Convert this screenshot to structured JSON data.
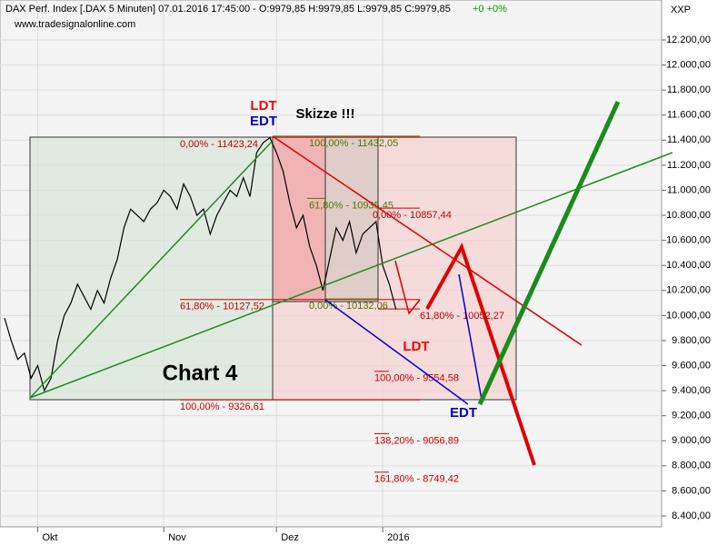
{
  "chart_data": {
    "type": "line",
    "header": "DAX Perf. Index [.DAX  5 Minuten] 07.01.2016 17:45:00 - O:9979,85 H:9979,85 L:9979,85 C:9979,85",
    "change": "+0 +0%",
    "source": "www.tradesignalonline.com",
    "axis_label": "XXP",
    "color": "#000000",
    "categories": [
      null,
      null,
      null,
      null,
      null,
      "Okt",
      null,
      null,
      null,
      null,
      null,
      null,
      null,
      null,
      null,
      null,
      null,
      null,
      null,
      null,
      null,
      null,
      null,
      null,
      "Nov",
      null,
      null,
      null,
      null,
      null,
      null,
      null,
      null,
      null,
      null,
      null,
      null,
      null,
      null,
      null,
      null,
      "Dez",
      null,
      null,
      null,
      null,
      null,
      null,
      null,
      null,
      null,
      null,
      null,
      null,
      null,
      null,
      null,
      "2016",
      null,
      null
    ],
    "values": [
      9980,
      9800,
      9650,
      9700,
      9500,
      9600,
      9400,
      9500,
      9800,
      10000,
      10100,
      10250,
      10150,
      10050,
      10200,
      10100,
      10300,
      10450,
      10700,
      10850,
      10800,
      10750,
      10850,
      10900,
      11000,
      10950,
      10850,
      11050,
      10950,
      10800,
      10850,
      10650,
      10800,
      10900,
      11000,
      10950,
      11100,
      10950,
      11300,
      11380,
      11420,
      11300,
      11150,
      10900,
      10700,
      10800,
      10550,
      10400,
      10200,
      10450,
      10700,
      10600,
      10750,
      10500,
      10650,
      10700,
      10750,
      10400,
      10250,
      10050
    ],
    "ylim": [
      8313,
      12519
    ],
    "yticks": [
      {
        "value": 8400,
        "label": "8.400,00"
      },
      {
        "value": 8600,
        "label": "8.600,00"
      },
      {
        "value": 8800,
        "label": "8.800,00"
      },
      {
        "value": 9000,
        "label": "9.000,00"
      },
      {
        "value": 9200,
        "label": "9.200,00"
      },
      {
        "value": 9400,
        "label": "9.400,00"
      },
      {
        "value": 9600,
        "label": "9.600,00"
      },
      {
        "value": 9800,
        "label": "9.800,00"
      },
      {
        "value": 10000,
        "label": "10.000,00"
      },
      {
        "value": 10200,
        "label": "10.200,00"
      },
      {
        "value": 10400,
        "label": "10.400,00"
      },
      {
        "value": 10600,
        "label": "10.600,00"
      },
      {
        "value": 10800,
        "label": "10.800,00"
      },
      {
        "value": 11000,
        "label": "11.000,00"
      },
      {
        "value": 11200,
        "label": "11.200,00"
      },
      {
        "value": 11400,
        "label": "11.400,00"
      },
      {
        "value": 11600,
        "label": "11.600,00"
      },
      {
        "value": 11800,
        "label": "11.800,00"
      },
      {
        "value": 12000,
        "label": "12.000,00"
      },
      {
        "value": 12200,
        "label": "12.200,00"
      }
    ],
    "grid": true,
    "fib_levels": [
      {
        "label": "0,00% - 11423,24",
        "value": 11423.24,
        "color": "#cc0000"
      },
      {
        "label": "100,00% - 11432,05",
        "value": 11432.05,
        "color": "#4d7a00"
      },
      {
        "label": "61,80% - 10935,45",
        "value": 10935.45,
        "color": "#4d7a00"
      },
      {
        "label": "0,00% - 10857,44",
        "value": 10857.44,
        "color": "#cc0000"
      },
      {
        "label": "61,80% - 10127,52",
        "value": 10127.52,
        "color": "#cc0000"
      },
      {
        "label": "0,00% - 10132,06",
        "value": 10132.06,
        "color": "#4d7a00"
      },
      {
        "label": "61,80% - 10052,27",
        "value": 10052.27,
        "color": "#cc0000"
      },
      {
        "label": "100,00% - 9554,58",
        "value": 9554.58,
        "color": "#cc0000"
      },
      {
        "label": "100,00% - 9326,61",
        "value": 9326.61,
        "color": "#cc0000"
      },
      {
        "label": "138,20% - 9056,89",
        "value": 9056.89,
        "color": "#cc0000"
      },
      {
        "label": "161,80% - 8749,42",
        "value": 8749.42,
        "color": "#cc0000"
      }
    ],
    "annotations": [
      {
        "text": "LDT",
        "color": "#ff0000"
      },
      {
        "text": "EDT",
        "color": "#0000cc"
      },
      {
        "text": "Skizze !!!",
        "color": "#000000"
      },
      {
        "text": "Chart 4",
        "color": "#000000"
      },
      {
        "text": "LDT",
        "color": "#ff0000"
      },
      {
        "text": "EDT",
        "color": "#0000cc"
      }
    ]
  }
}
